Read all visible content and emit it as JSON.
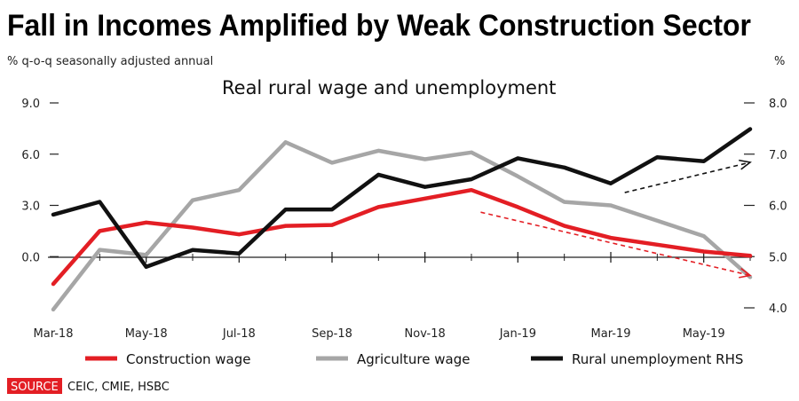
{
  "chart_data": {
    "type": "line",
    "title": "Fall in Incomes Amplified by Weak Construction Sector",
    "subtitle": "Real rural wage and unemployment",
    "left_axis_label": "% q-o-q seasonally adjusted annual",
    "right_axis_label": "%",
    "y_left": {
      "min": -3,
      "max": 9,
      "ticks": [
        9.0,
        6.0,
        3.0,
        0.0
      ],
      "tick_labels": [
        "9.0",
        "6.0",
        "3.0",
        "0.0"
      ]
    },
    "y_right": {
      "min": 4,
      "max": 8,
      "ticks": [
        8.0,
        7.0,
        6.0,
        5.0,
        4.0
      ],
      "tick_labels": [
        "8.0",
        "7.0",
        "6.0",
        "5.0",
        "4.0"
      ]
    },
    "x_labels": [
      "Mar-18",
      "May-18",
      "Jul-18",
      "Sep-18",
      "Nov-18",
      "Jan-19",
      "Mar-19",
      "May-19"
    ],
    "x_count": 16,
    "series": [
      {
        "name": "Construction wage",
        "axis": "left",
        "color": "#e31e24",
        "values": [
          -1.6,
          1.5,
          2.0,
          1.7,
          1.3,
          1.8,
          1.85,
          2.9,
          3.4,
          3.9,
          2.9,
          1.8,
          1.1,
          0.7,
          0.3,
          0.05
        ]
      },
      {
        "name": "Agriculture wage",
        "axis": "left",
        "color": "#a6a6a6",
        "values": [
          -3.1,
          0.4,
          0.1,
          3.3,
          3.9,
          6.7,
          5.5,
          6.2,
          5.7,
          6.1,
          4.7,
          3.2,
          3.0,
          2.1,
          1.2,
          -1.2
        ]
      },
      {
        "name": "Rural unemployment RHS",
        "axis": "right",
        "color": "#111111",
        "values": [
          5.82,
          6.07,
          4.8,
          5.13,
          5.06,
          5.92,
          5.92,
          6.6,
          6.36,
          6.51,
          6.92,
          6.74,
          6.43,
          6.94,
          6.86,
          7.49
        ]
      }
    ],
    "trend_arrows": [
      {
        "color": "#e31e24",
        "from": {
          "x": 9.2,
          "axis": "left",
          "y": 2.6
        },
        "to": {
          "x": 15.0,
          "axis": "left",
          "y": -1.1
        }
      },
      {
        "color": "#111111",
        "from": {
          "x": 12.3,
          "axis": "right",
          "y": 6.25
        },
        "to": {
          "x": 15.0,
          "axis": "right",
          "y": 6.84
        }
      }
    ],
    "legend_position": "bottom"
  },
  "source": {
    "label": "SOURCE",
    "text": "CEIC, CMIE, HSBC"
  },
  "colors": {
    "source_bg": "#e31e24"
  }
}
